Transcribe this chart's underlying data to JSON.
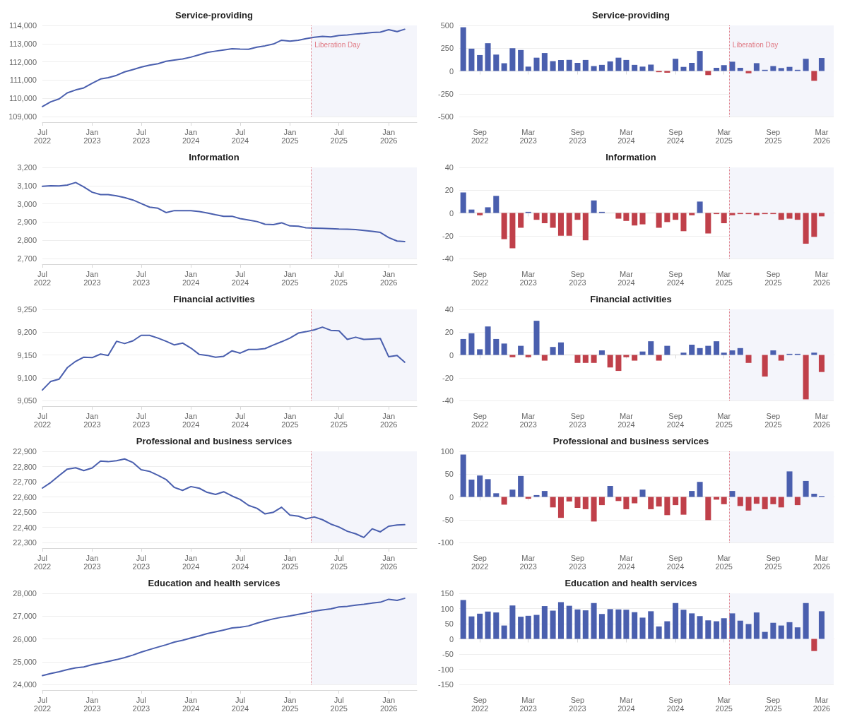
{
  "chart_data": [
    {
      "type": "line",
      "title": "Service-providing",
      "x": [
        "2022-07",
        "2022-08",
        "2022-09",
        "2022-10",
        "2022-11",
        "2022-12",
        "2023-01",
        "2023-02",
        "2023-03",
        "2023-04",
        "2023-05",
        "2023-06",
        "2023-07",
        "2023-08",
        "2023-09",
        "2023-10",
        "2023-11",
        "2023-12",
        "2024-01",
        "2024-02",
        "2024-03",
        "2024-04",
        "2024-05",
        "2024-06",
        "2024-07",
        "2024-08",
        "2024-09",
        "2024-10",
        "2024-11",
        "2024-12",
        "2025-01",
        "2025-02",
        "2025-03",
        "2025-04",
        "2025-05",
        "2025-06",
        "2025-07",
        "2025-08",
        "2025-09",
        "2025-10",
        "2025-11",
        "2025-12",
        "2026-01",
        "2026-02",
        "2026-03"
      ],
      "values": [
        109550,
        109810,
        109970,
        110300,
        110460,
        110570,
        110830,
        111060,
        111130,
        111260,
        111450,
        111580,
        111710,
        111820,
        111900,
        112030,
        112100,
        112160,
        112260,
        112390,
        112520,
        112590,
        112650,
        112720,
        112700,
        112690,
        112810,
        112880,
        112980,
        113190,
        113140,
        113190,
        113270,
        113350,
        113400,
        113370,
        113450,
        113480,
        113530,
        113560,
        113610,
        113630,
        113770,
        113660,
        113790
      ],
      "color": "#4a5fae",
      "xlim": [
        "2022-07",
        "2026-04-15"
      ],
      "xticks": [
        {
          "value": "2022-07",
          "label": "Jul\n2022"
        },
        {
          "value": "2023-01",
          "label": "Jan\n2023"
        },
        {
          "value": "2023-07",
          "label": "Jul\n2023"
        },
        {
          "value": "2024-01",
          "label": "Jan\n2024"
        },
        {
          "value": "2024-07",
          "label": "Jul\n2024"
        },
        {
          "value": "2025-01",
          "label": "Jan\n2025"
        },
        {
          "value": "2025-07",
          "label": "Jul\n2025"
        },
        {
          "value": "2026-01",
          "label": "Jan\n2026"
        }
      ],
      "ylim": [
        109000,
        114000
      ],
      "yticks": [
        {
          "value": 109000,
          "label": "109,000"
        },
        {
          "value": 110000,
          "label": "110,000"
        },
        {
          "value": 111000,
          "label": "111,000"
        },
        {
          "value": 112000,
          "label": "112,000"
        },
        {
          "value": 113000,
          "label": "113,000"
        },
        {
          "value": 114000,
          "label": "114,000"
        }
      ],
      "grid": "y",
      "ref_lines": [
        {
          "axis": "x",
          "value": "2025-03-20",
          "label": "Liberation Day",
          "color": "#e07a84",
          "line_style": "dotted"
        }
      ],
      "bands": [
        {
          "axis": "x",
          "from": "2025-03-20",
          "to": "2026-04-15",
          "color": "#f4f5fb"
        }
      ]
    },
    {
      "type": "bar",
      "title": "Service-providing",
      "x": [
        "2022-07",
        "2022-08",
        "2022-09",
        "2022-10",
        "2022-11",
        "2022-12",
        "2023-01",
        "2023-02",
        "2023-03",
        "2023-04",
        "2023-05",
        "2023-06",
        "2023-07",
        "2023-08",
        "2023-09",
        "2023-10",
        "2023-11",
        "2023-12",
        "2024-01",
        "2024-02",
        "2024-03",
        "2024-04",
        "2024-05",
        "2024-06",
        "2024-07",
        "2024-08",
        "2024-09",
        "2024-10",
        "2024-11",
        "2024-12",
        "2025-01",
        "2025-02",
        "2025-03",
        "2025-04",
        "2025-05",
        "2025-06",
        "2025-07",
        "2025-08",
        "2025-09",
        "2025-10",
        "2025-11",
        "2025-12",
        "2026-01",
        "2026-02",
        "2026-03"
      ],
      "values": [
        480,
        245,
        175,
        305,
        180,
        85,
        250,
        230,
        48,
        146,
        197,
        108,
        120,
        122,
        89,
        121,
        54,
        67,
        105,
        146,
        121,
        67,
        48,
        70,
        -13,
        -19,
        134,
        45,
        89,
        220,
        -45,
        35,
        64,
        102,
        35,
        -25,
        86,
        13,
        54,
        32,
        45,
        13,
        134,
        -108,
        143
      ],
      "colors": [
        "#4a5fae",
        "#4a5fae",
        "#4a5fae",
        "#4a5fae",
        "#4a5fae",
        "#4a5fae",
        "#4a5fae",
        "#4a5fae",
        "#4a5fae",
        "#4a5fae",
        "#4a5fae",
        "#4a5fae",
        "#4a5fae",
        "#4a5fae",
        "#4a5fae",
        "#4a5fae",
        "#4a5fae",
        "#4a5fae",
        "#4a5fae",
        "#4a5fae",
        "#4a5fae",
        "#4a5fae",
        "#4a5fae",
        "#4a5fae",
        "#c0404a",
        "#c0404a",
        "#4a5fae",
        "#4a5fae",
        "#4a5fae",
        "#4a5fae",
        "#c0404a",
        "#4a5fae",
        "#4a5fae",
        "#4a5fae",
        "#4a5fae",
        "#c0404a",
        "#4a5fae",
        "#4a5fae",
        "#4a5fae",
        "#4a5fae",
        "#4a5fae",
        "#4a5fae",
        "#4a5fae",
        "#c0404a",
        "#4a5fae"
      ],
      "xlim": [
        "2022-06-16",
        "2026-04-15"
      ],
      "xticks": [
        {
          "value": "2022-09",
          "label": "Sep\n2022"
        },
        {
          "value": "2023-03",
          "label": "Mar\n2023"
        },
        {
          "value": "2023-09",
          "label": "Sep\n2023"
        },
        {
          "value": "2024-03",
          "label": "Mar\n2024"
        },
        {
          "value": "2024-09",
          "label": "Sep\n2024"
        },
        {
          "value": "2025-03",
          "label": "Mar\n2025"
        },
        {
          "value": "2025-09",
          "label": "Sep\n2025"
        },
        {
          "value": "2026-03",
          "label": "Mar\n2026"
        }
      ],
      "ylim": [
        -500,
        500
      ],
      "yticks": [
        -500,
        -250,
        0,
        250,
        500
      ],
      "grid": "y",
      "ref_lines": [
        {
          "axis": "x",
          "value": "2025-03-20",
          "label": "Liberation Day",
          "color": "#e07a84",
          "line_style": "dotted"
        }
      ],
      "bands": [
        {
          "axis": "x",
          "from": "2025-03-20",
          "to": "2026-04-15",
          "color": "#f4f5fb"
        }
      ]
    },
    {
      "type": "line",
      "title": "Information",
      "x": [
        "2022-07",
        "2022-08",
        "2022-09",
        "2022-10",
        "2022-11",
        "2022-12",
        "2023-01",
        "2023-02",
        "2023-03",
        "2023-04",
        "2023-05",
        "2023-06",
        "2023-07",
        "2023-08",
        "2023-09",
        "2023-10",
        "2023-11",
        "2023-12",
        "2024-01",
        "2024-02",
        "2024-03",
        "2024-04",
        "2024-05",
        "2024-06",
        "2024-07",
        "2024-08",
        "2024-09",
        "2024-10",
        "2024-11",
        "2024-12",
        "2025-01",
        "2025-02",
        "2025-03",
        "2025-04",
        "2025-05",
        "2025-06",
        "2025-07",
        "2025-08",
        "2025-09",
        "2025-10",
        "2025-11",
        "2025-12",
        "2026-01",
        "2026-02",
        "2026-03"
      ],
      "values": [
        3096,
        3099,
        3098,
        3103,
        3117,
        3093,
        3064,
        3051,
        3051,
        3044,
        3034,
        3021,
        3002,
        2982,
        2976,
        2952,
        2963,
        2963,
        2963,
        2958,
        2950,
        2940,
        2932,
        2932,
        2919,
        2911,
        2903,
        2888,
        2886,
        2896,
        2879,
        2877,
        2869,
        2867,
        2866,
        2864,
        2862,
        2861,
        2859,
        2854,
        2849,
        2843,
        2815,
        2796,
        2793
      ],
      "color": "#4a5fae",
      "xlim": [
        "2022-07",
        "2026-04-15"
      ],
      "xticks": [
        {
          "value": "2022-07",
          "label": "Jul\n2022"
        },
        {
          "value": "2023-01",
          "label": "Jan\n2023"
        },
        {
          "value": "2023-07",
          "label": "Jul\n2023"
        },
        {
          "value": "2024-01",
          "label": "Jan\n2024"
        },
        {
          "value": "2024-07",
          "label": "Jul\n2024"
        },
        {
          "value": "2025-01",
          "label": "Jan\n2025"
        },
        {
          "value": "2025-07",
          "label": "Jul\n2025"
        },
        {
          "value": "2026-01",
          "label": "Jan\n2026"
        }
      ],
      "ylim": [
        2700,
        3200
      ],
      "yticks": [
        {
          "value": 2700,
          "label": "2,700"
        },
        {
          "value": 2800,
          "label": "2,800"
        },
        {
          "value": 2900,
          "label": "2,900"
        },
        {
          "value": 3000,
          "label": "3,000"
        },
        {
          "value": 3100,
          "label": "3,100"
        },
        {
          "value": 3200,
          "label": "3,200"
        }
      ],
      "grid": "y",
      "ref_lines": [
        {
          "axis": "x",
          "value": "2025-03-20",
          "color": "#e07a84",
          "line_style": "dotted"
        }
      ],
      "bands": [
        {
          "axis": "x",
          "from": "2025-03-20",
          "to": "2026-04-15",
          "color": "#f4f5fb"
        }
      ]
    },
    {
      "type": "bar",
      "title": "Information",
      "x": [
        "2022-07",
        "2022-08",
        "2022-09",
        "2022-10",
        "2022-11",
        "2022-12",
        "2023-01",
        "2023-02",
        "2023-03",
        "2023-04",
        "2023-05",
        "2023-06",
        "2023-07",
        "2023-08",
        "2023-09",
        "2023-10",
        "2023-11",
        "2023-12",
        "2024-01",
        "2024-02",
        "2024-03",
        "2024-04",
        "2024-05",
        "2024-06",
        "2024-07",
        "2024-08",
        "2024-09",
        "2024-10",
        "2024-11",
        "2024-12",
        "2025-01",
        "2025-02",
        "2025-03",
        "2025-04",
        "2025-05",
        "2025-06",
        "2025-07",
        "2025-08",
        "2025-09",
        "2025-10",
        "2025-11",
        "2025-12",
        "2026-01",
        "2026-02",
        "2026-03"
      ],
      "values": [
        18,
        3,
        -2,
        5,
        15,
        -23,
        -31,
        -13,
        1,
        -6,
        -9,
        -13,
        -20,
        -20,
        -6,
        -24,
        11,
        1,
        0,
        -5,
        -7,
        -11,
        -10,
        0,
        -13,
        -8,
        -6,
        -16,
        -2,
        10,
        -18,
        -1,
        -9,
        -2,
        -1,
        -1,
        -2,
        -1,
        -1,
        -6,
        -5,
        -6,
        -27,
        -21,
        -3
      ],
      "colors": [
        "#4a5fae",
        "#4a5fae",
        "#c0404a",
        "#4a5fae",
        "#4a5fae",
        "#c0404a",
        "#c0404a",
        "#c0404a",
        "#4a5fae",
        "#c0404a",
        "#c0404a",
        "#c0404a",
        "#c0404a",
        "#c0404a",
        "#c0404a",
        "#c0404a",
        "#4a5fae",
        "#4a5fae",
        "#4a5fae",
        "#c0404a",
        "#c0404a",
        "#c0404a",
        "#c0404a",
        "#4a5fae",
        "#c0404a",
        "#c0404a",
        "#c0404a",
        "#c0404a",
        "#c0404a",
        "#4a5fae",
        "#c0404a",
        "#c0404a",
        "#c0404a",
        "#c0404a",
        "#c0404a",
        "#c0404a",
        "#c0404a",
        "#c0404a",
        "#c0404a",
        "#c0404a",
        "#c0404a",
        "#c0404a",
        "#c0404a",
        "#c0404a",
        "#c0404a"
      ],
      "xlim": [
        "2022-06-16",
        "2026-04-15"
      ],
      "xticks": [
        {
          "value": "2022-09",
          "label": "Sep\n2022"
        },
        {
          "value": "2023-03",
          "label": "Mar\n2023"
        },
        {
          "value": "2023-09",
          "label": "Sep\n2023"
        },
        {
          "value": "2024-03",
          "label": "Mar\n2024"
        },
        {
          "value": "2024-09",
          "label": "Sep\n2024"
        },
        {
          "value": "2025-03",
          "label": "Mar\n2025"
        },
        {
          "value": "2025-09",
          "label": "Sep\n2025"
        },
        {
          "value": "2026-03",
          "label": "Mar\n2026"
        }
      ],
      "ylim": [
        -40,
        40
      ],
      "yticks": [
        -40,
        -20,
        0,
        20,
        40
      ],
      "grid": "y",
      "ref_lines": [
        {
          "axis": "x",
          "value": "2025-03-20",
          "color": "#e07a84",
          "line_style": "dotted"
        }
      ],
      "bands": [
        {
          "axis": "x",
          "from": "2025-03-20",
          "to": "2026-04-15",
          "color": "#f4f5fb"
        }
      ]
    },
    {
      "type": "line",
      "title": "Financial activities",
      "x": [
        "2022-07",
        "2022-08",
        "2022-09",
        "2022-10",
        "2022-11",
        "2022-12",
        "2023-01",
        "2023-02",
        "2023-03",
        "2023-04",
        "2023-05",
        "2023-06",
        "2023-07",
        "2023-08",
        "2023-09",
        "2023-10",
        "2023-11",
        "2023-12",
        "2024-01",
        "2024-02",
        "2024-03",
        "2024-04",
        "2024-05",
        "2024-06",
        "2024-07",
        "2024-08",
        "2024-09",
        "2024-10",
        "2024-11",
        "2024-12",
        "2025-01",
        "2025-02",
        "2025-03",
        "2025-04",
        "2025-05",
        "2025-06",
        "2025-07",
        "2025-08",
        "2025-09",
        "2025-10",
        "2025-11",
        "2025-12",
        "2026-01",
        "2026-02",
        "2026-03"
      ],
      "values": [
        9073,
        9092,
        9097,
        9122,
        9136,
        9145,
        9144,
        9152,
        9149,
        9180,
        9175,
        9181,
        9193,
        9193,
        9187,
        9180,
        9172,
        9176,
        9165,
        9151,
        9149,
        9145,
        9147,
        9159,
        9154,
        9162,
        9162,
        9164,
        9172,
        9179,
        9187,
        9198,
        9201,
        9205,
        9211,
        9204,
        9203,
        9184,
        9189,
        9184,
        9185,
        9186,
        9146,
        9149,
        9134
      ],
      "color": "#4a5fae",
      "xlim": [
        "2022-07",
        "2026-04-15"
      ],
      "xticks": [
        {
          "value": "2022-07",
          "label": "Jul\n2022"
        },
        {
          "value": "2023-01",
          "label": "Jan\n2023"
        },
        {
          "value": "2023-07",
          "label": "Jul\n2023"
        },
        {
          "value": "2024-01",
          "label": "Jan\n2024"
        },
        {
          "value": "2024-07",
          "label": "Jul\n2024"
        },
        {
          "value": "2025-01",
          "label": "Jan\n2025"
        },
        {
          "value": "2025-07",
          "label": "Jul\n2025"
        },
        {
          "value": "2026-01",
          "label": "Jan\n2026"
        }
      ],
      "ylim": [
        9050,
        9250
      ],
      "yticks": [
        {
          "value": 9050,
          "label": "9,050"
        },
        {
          "value": 9100,
          "label": "9,100"
        },
        {
          "value": 9150,
          "label": "9,150"
        },
        {
          "value": 9200,
          "label": "9,200"
        },
        {
          "value": 9250,
          "label": "9,250"
        }
      ],
      "grid": "y",
      "ref_lines": [
        {
          "axis": "x",
          "value": "2025-03-20",
          "color": "#e07a84",
          "line_style": "dotted"
        }
      ],
      "bands": [
        {
          "axis": "x",
          "from": "2025-03-20",
          "to": "2026-04-15",
          "color": "#f4f5fb"
        }
      ]
    },
    {
      "type": "bar",
      "title": "Financial activities",
      "x": [
        "2022-07",
        "2022-08",
        "2022-09",
        "2022-10",
        "2022-11",
        "2022-12",
        "2023-01",
        "2023-02",
        "2023-03",
        "2023-04",
        "2023-05",
        "2023-06",
        "2023-07",
        "2023-08",
        "2023-09",
        "2023-10",
        "2023-11",
        "2023-12",
        "2024-01",
        "2024-02",
        "2024-03",
        "2024-04",
        "2024-05",
        "2024-06",
        "2024-07",
        "2024-08",
        "2024-09",
        "2024-10",
        "2024-11",
        "2024-12",
        "2025-01",
        "2025-02",
        "2025-03",
        "2025-04",
        "2025-05",
        "2025-06",
        "2025-07",
        "2025-08",
        "2025-09",
        "2025-10",
        "2025-11",
        "2025-12",
        "2026-01",
        "2026-02",
        "2026-03"
      ],
      "values": [
        14,
        19,
        5,
        25,
        14,
        10,
        -2,
        8,
        -2,
        30,
        -5,
        7,
        11,
        0,
        -7,
        -7,
        -7,
        4,
        -11,
        -14,
        -2,
        -5,
        3,
        12,
        -5,
        8,
        0,
        2,
        9,
        6,
        8,
        12,
        2,
        4,
        6,
        -7,
        0,
        -19,
        4,
        -5,
        1,
        1,
        -39,
        2,
        -15
      ],
      "colors": [
        "#4a5fae",
        "#4a5fae",
        "#4a5fae",
        "#4a5fae",
        "#4a5fae",
        "#4a5fae",
        "#c0404a",
        "#4a5fae",
        "#c0404a",
        "#4a5fae",
        "#c0404a",
        "#4a5fae",
        "#4a5fae",
        "#4a5fae",
        "#c0404a",
        "#c0404a",
        "#c0404a",
        "#4a5fae",
        "#c0404a",
        "#c0404a",
        "#c0404a",
        "#c0404a",
        "#4a5fae",
        "#4a5fae",
        "#c0404a",
        "#4a5fae",
        "#4a5fae",
        "#4a5fae",
        "#4a5fae",
        "#4a5fae",
        "#4a5fae",
        "#4a5fae",
        "#4a5fae",
        "#4a5fae",
        "#4a5fae",
        "#c0404a",
        "#4a5fae",
        "#c0404a",
        "#4a5fae",
        "#c0404a",
        "#4a5fae",
        "#4a5fae",
        "#c0404a",
        "#4a5fae",
        "#c0404a"
      ],
      "xlim": [
        "2022-06-16",
        "2026-04-15"
      ],
      "xticks": [
        {
          "value": "2022-09",
          "label": "Sep\n2022"
        },
        {
          "value": "2023-03",
          "label": "Mar\n2023"
        },
        {
          "value": "2023-09",
          "label": "Sep\n2023"
        },
        {
          "value": "2024-03",
          "label": "Mar\n2024"
        },
        {
          "value": "2024-09",
          "label": "Sep\n2024"
        },
        {
          "value": "2025-03",
          "label": "Mar\n2025"
        },
        {
          "value": "2025-09",
          "label": "Sep\n2025"
        },
        {
          "value": "2026-03",
          "label": "Mar\n2026"
        }
      ],
      "ylim": [
        -40,
        40
      ],
      "yticks": [
        -40,
        -20,
        0,
        20,
        40
      ],
      "grid": "y",
      "ref_lines": [
        {
          "axis": "x",
          "value": "2025-03-20",
          "color": "#e07a84",
          "line_style": "dotted"
        }
      ],
      "bands": [
        {
          "axis": "x",
          "from": "2025-03-20",
          "to": "2026-04-15",
          "color": "#f4f5fb"
        }
      ]
    },
    {
      "type": "line",
      "title": "Professional and business services",
      "x": [
        "2022-07",
        "2022-08",
        "2022-09",
        "2022-10",
        "2022-11",
        "2022-12",
        "2023-01",
        "2023-02",
        "2023-03",
        "2023-04",
        "2023-05",
        "2023-06",
        "2023-07",
        "2023-08",
        "2023-09",
        "2023-10",
        "2023-11",
        "2023-12",
        "2024-01",
        "2024-02",
        "2024-03",
        "2024-04",
        "2024-05",
        "2024-06",
        "2024-07",
        "2024-08",
        "2024-09",
        "2024-10",
        "2024-11",
        "2024-12",
        "2025-01",
        "2025-02",
        "2025-03",
        "2025-04",
        "2025-05",
        "2025-06",
        "2025-07",
        "2025-08",
        "2025-09",
        "2025-10",
        "2025-11",
        "2025-12",
        "2026-01",
        "2026-02",
        "2026-03"
      ],
      "values": [
        22658,
        22695,
        22741,
        22783,
        22792,
        22773,
        22791,
        22836,
        22832,
        22838,
        22850,
        22826,
        22779,
        22768,
        22742,
        22715,
        22662,
        22643,
        22668,
        22657,
        22630,
        22616,
        22634,
        22606,
        22583,
        22544,
        22525,
        22488,
        22499,
        22532,
        22480,
        22473,
        22456,
        22468,
        22450,
        22421,
        22402,
        22374,
        22357,
        22333,
        22390,
        22370,
        22407,
        22415,
        22417
      ],
      "color": "#4a5fae",
      "xlim": [
        "2022-07",
        "2026-04-15"
      ],
      "xticks": [
        {
          "value": "2022-07",
          "label": "Jul\n2022"
        },
        {
          "value": "2023-01",
          "label": "Jan\n2023"
        },
        {
          "value": "2023-07",
          "label": "Jul\n2023"
        },
        {
          "value": "2024-01",
          "label": "Jan\n2024"
        },
        {
          "value": "2024-07",
          "label": "Jul\n2024"
        },
        {
          "value": "2025-01",
          "label": "Jan\n2025"
        },
        {
          "value": "2025-07",
          "label": "Jul\n2025"
        },
        {
          "value": "2026-01",
          "label": "Jan\n2026"
        }
      ],
      "ylim": [
        22300,
        22900
      ],
      "yticks": [
        {
          "value": 22300,
          "label": "22,300"
        },
        {
          "value": 22400,
          "label": "22,400"
        },
        {
          "value": 22500,
          "label": "22,500"
        },
        {
          "value": 22600,
          "label": "22,600"
        },
        {
          "value": 22700,
          "label": "22,700"
        },
        {
          "value": 22800,
          "label": "22,800"
        },
        {
          "value": 22900,
          "label": "22,900"
        }
      ],
      "grid": "y",
      "ref_lines": [
        {
          "axis": "x",
          "value": "2025-03-20",
          "color": "#e07a84",
          "line_style": "dotted"
        }
      ],
      "bands": [
        {
          "axis": "x",
          "from": "2025-03-20",
          "to": "2026-04-15",
          "color": "#f4f5fb"
        }
      ]
    },
    {
      "type": "bar",
      "title": "Professional and business services",
      "x": [
        "2022-07",
        "2022-08",
        "2022-09",
        "2022-10",
        "2022-11",
        "2022-12",
        "2023-01",
        "2023-02",
        "2023-03",
        "2023-04",
        "2023-05",
        "2023-06",
        "2023-07",
        "2023-08",
        "2023-09",
        "2023-10",
        "2023-11",
        "2023-12",
        "2024-01",
        "2024-02",
        "2024-03",
        "2024-04",
        "2024-05",
        "2024-06",
        "2024-07",
        "2024-08",
        "2024-09",
        "2024-10",
        "2024-11",
        "2024-12",
        "2025-01",
        "2025-02",
        "2025-03",
        "2025-04",
        "2025-05",
        "2025-06",
        "2025-07",
        "2025-08",
        "2025-09",
        "2025-10",
        "2025-11",
        "2025-12",
        "2026-01",
        "2026-02",
        "2026-03"
      ],
      "values": [
        93,
        38,
        47,
        39,
        8,
        -17,
        16,
        46,
        -4,
        4,
        13,
        -23,
        -46,
        -10,
        -24,
        -27,
        -54,
        -18,
        24,
        -9,
        -27,
        -14,
        16,
        -27,
        -21,
        -40,
        -18,
        -39,
        13,
        33,
        -51,
        -6,
        -16,
        13,
        -20,
        -30,
        -15,
        -27,
        -16,
        -23,
        56,
        -18,
        35,
        7,
        2
      ],
      "colors": [
        "#4a5fae",
        "#4a5fae",
        "#4a5fae",
        "#4a5fae",
        "#4a5fae",
        "#c0404a",
        "#4a5fae",
        "#4a5fae",
        "#c0404a",
        "#4a5fae",
        "#4a5fae",
        "#c0404a",
        "#c0404a",
        "#c0404a",
        "#c0404a",
        "#c0404a",
        "#c0404a",
        "#c0404a",
        "#4a5fae",
        "#c0404a",
        "#c0404a",
        "#c0404a",
        "#4a5fae",
        "#c0404a",
        "#c0404a",
        "#c0404a",
        "#c0404a",
        "#c0404a",
        "#4a5fae",
        "#4a5fae",
        "#c0404a",
        "#c0404a",
        "#c0404a",
        "#4a5fae",
        "#c0404a",
        "#c0404a",
        "#c0404a",
        "#c0404a",
        "#c0404a",
        "#c0404a",
        "#4a5fae",
        "#c0404a",
        "#4a5fae",
        "#4a5fae",
        "#4a5fae"
      ],
      "xlim": [
        "2022-06-16",
        "2026-04-15"
      ],
      "xticks": [
        {
          "value": "2022-09",
          "label": "Sep\n2022"
        },
        {
          "value": "2023-03",
          "label": "Mar\n2023"
        },
        {
          "value": "2023-09",
          "label": "Sep\n2023"
        },
        {
          "value": "2024-03",
          "label": "Mar\n2024"
        },
        {
          "value": "2024-09",
          "label": "Sep\n2024"
        },
        {
          "value": "2025-03",
          "label": "Mar\n2025"
        },
        {
          "value": "2025-09",
          "label": "Sep\n2025"
        },
        {
          "value": "2026-03",
          "label": "Mar\n2026"
        }
      ],
      "ylim": [
        -100,
        100
      ],
      "yticks": [
        -100,
        -50,
        0,
        50,
        100
      ],
      "grid": "y",
      "ref_lines": [
        {
          "axis": "x",
          "value": "2025-03-20",
          "color": "#e07a84",
          "line_style": "dotted"
        }
      ],
      "bands": [
        {
          "axis": "x",
          "from": "2025-03-20",
          "to": "2026-04-15",
          "color": "#f4f5fb"
        }
      ]
    },
    {
      "type": "line",
      "title": "Education and health services",
      "x": [
        "2022-07",
        "2022-08",
        "2022-09",
        "2022-10",
        "2022-11",
        "2022-12",
        "2023-01",
        "2023-02",
        "2023-03",
        "2023-04",
        "2023-05",
        "2023-06",
        "2023-07",
        "2023-08",
        "2023-09",
        "2023-10",
        "2023-11",
        "2023-12",
        "2024-01",
        "2024-02",
        "2024-03",
        "2024-04",
        "2024-05",
        "2024-06",
        "2024-07",
        "2024-08",
        "2024-09",
        "2024-10",
        "2024-11",
        "2024-12",
        "2025-01",
        "2025-02",
        "2025-03",
        "2025-04",
        "2025-05",
        "2025-06",
        "2025-07",
        "2025-08",
        "2025-09",
        "2025-10",
        "2025-11",
        "2025-12",
        "2026-01",
        "2026-02",
        "2026-03"
      ],
      "values": [
        24390,
        24480,
        24560,
        24650,
        24730,
        24770,
        24870,
        24940,
        25010,
        25090,
        25180,
        25290,
        25420,
        25530,
        25640,
        25740,
        25860,
        25940,
        26040,
        26130,
        26230,
        26310,
        26390,
        26480,
        26510,
        26570,
        26690,
        26790,
        26880,
        26950,
        27010,
        27080,
        27140,
        27220,
        27270,
        27320,
        27400,
        27430,
        27480,
        27520,
        27570,
        27610,
        27740,
        27690,
        27780
      ],
      "color": "#4a5fae",
      "xlim": [
        "2022-07",
        "2026-04-15"
      ],
      "xticks": [
        {
          "value": "2022-07",
          "label": "Jul\n2022"
        },
        {
          "value": "2023-01",
          "label": "Jan\n2023"
        },
        {
          "value": "2023-07",
          "label": "Jul\n2023"
        },
        {
          "value": "2024-01",
          "label": "Jan\n2024"
        },
        {
          "value": "2024-07",
          "label": "Jul\n2024"
        },
        {
          "value": "2025-01",
          "label": "Jan\n2025"
        },
        {
          "value": "2025-07",
          "label": "Jul\n2025"
        },
        {
          "value": "2026-01",
          "label": "Jan\n2026"
        }
      ],
      "ylim": [
        24000,
        28000
      ],
      "yticks": [
        {
          "value": 24000,
          "label": "24,000"
        },
        {
          "value": 25000,
          "label": "25,000"
        },
        {
          "value": 26000,
          "label": "26,000"
        },
        {
          "value": 27000,
          "label": "27,000"
        },
        {
          "value": 28000,
          "label": "28,000"
        }
      ],
      "grid": "y",
      "ref_lines": [
        {
          "axis": "x",
          "value": "2025-03-20",
          "color": "#e07a84",
          "line_style": "dotted"
        }
      ],
      "bands": [
        {
          "axis": "x",
          "from": "2025-03-20",
          "to": "2026-04-15",
          "color": "#f4f5fb"
        }
      ]
    },
    {
      "type": "bar",
      "title": "Education and health services",
      "x": [
        "2022-07",
        "2022-08",
        "2022-09",
        "2022-10",
        "2022-11",
        "2022-12",
        "2023-01",
        "2023-02",
        "2023-03",
        "2023-04",
        "2023-05",
        "2023-06",
        "2023-07",
        "2023-08",
        "2023-09",
        "2023-10",
        "2023-11",
        "2023-12",
        "2024-01",
        "2024-02",
        "2024-03",
        "2024-04",
        "2024-05",
        "2024-06",
        "2024-07",
        "2024-08",
        "2024-09",
        "2024-10",
        "2024-11",
        "2024-12",
        "2025-01",
        "2025-02",
        "2025-03",
        "2025-04",
        "2025-05",
        "2025-06",
        "2025-07",
        "2025-08",
        "2025-09",
        "2025-10",
        "2025-11",
        "2025-12",
        "2026-01",
        "2026-02",
        "2026-03"
      ],
      "values": [
        128,
        74,
        83,
        90,
        87,
        44,
        110,
        73,
        76,
        79,
        108,
        93,
        121,
        109,
        97,
        94,
        118,
        82,
        98,
        97,
        96,
        88,
        70,
        91,
        41,
        58,
        118,
        96,
        84,
        75,
        61,
        58,
        68,
        84,
        60,
        49,
        87,
        23,
        53,
        44,
        55,
        38,
        118,
        -40,
        91
      ],
      "colors": [
        "#4a5fae",
        "#4a5fae",
        "#4a5fae",
        "#4a5fae",
        "#4a5fae",
        "#4a5fae",
        "#4a5fae",
        "#4a5fae",
        "#4a5fae",
        "#4a5fae",
        "#4a5fae",
        "#4a5fae",
        "#4a5fae",
        "#4a5fae",
        "#4a5fae",
        "#4a5fae",
        "#4a5fae",
        "#4a5fae",
        "#4a5fae",
        "#4a5fae",
        "#4a5fae",
        "#4a5fae",
        "#4a5fae",
        "#4a5fae",
        "#4a5fae",
        "#4a5fae",
        "#4a5fae",
        "#4a5fae",
        "#4a5fae",
        "#4a5fae",
        "#4a5fae",
        "#4a5fae",
        "#4a5fae",
        "#4a5fae",
        "#4a5fae",
        "#4a5fae",
        "#4a5fae",
        "#4a5fae",
        "#4a5fae",
        "#4a5fae",
        "#4a5fae",
        "#4a5fae",
        "#4a5fae",
        "#c0404a",
        "#4a5fae"
      ],
      "xlim": [
        "2022-06-16",
        "2026-04-15"
      ],
      "xticks": [
        {
          "value": "2022-09",
          "label": "Sep\n2022"
        },
        {
          "value": "2023-03",
          "label": "Mar\n2023"
        },
        {
          "value": "2023-09",
          "label": "Sep\n2023"
        },
        {
          "value": "2024-03",
          "label": "Mar\n2024"
        },
        {
          "value": "2024-09",
          "label": "Sep\n2024"
        },
        {
          "value": "2025-03",
          "label": "Mar\n2025"
        },
        {
          "value": "2025-09",
          "label": "Sep\n2025"
        },
        {
          "value": "2026-03",
          "label": "Mar\n2026"
        }
      ],
      "ylim": [
        -150,
        150
      ],
      "yticks": [
        -150,
        -100,
        -50,
        0,
        50,
        100,
        150
      ],
      "grid": "y",
      "ref_lines": [
        {
          "axis": "x",
          "value": "2025-03-20",
          "color": "#e07a84",
          "line_style": "dotted"
        }
      ],
      "bands": [
        {
          "axis": "x",
          "from": "2025-03-20",
          "to": "2026-04-15",
          "color": "#f4f5fb"
        }
      ]
    }
  ]
}
